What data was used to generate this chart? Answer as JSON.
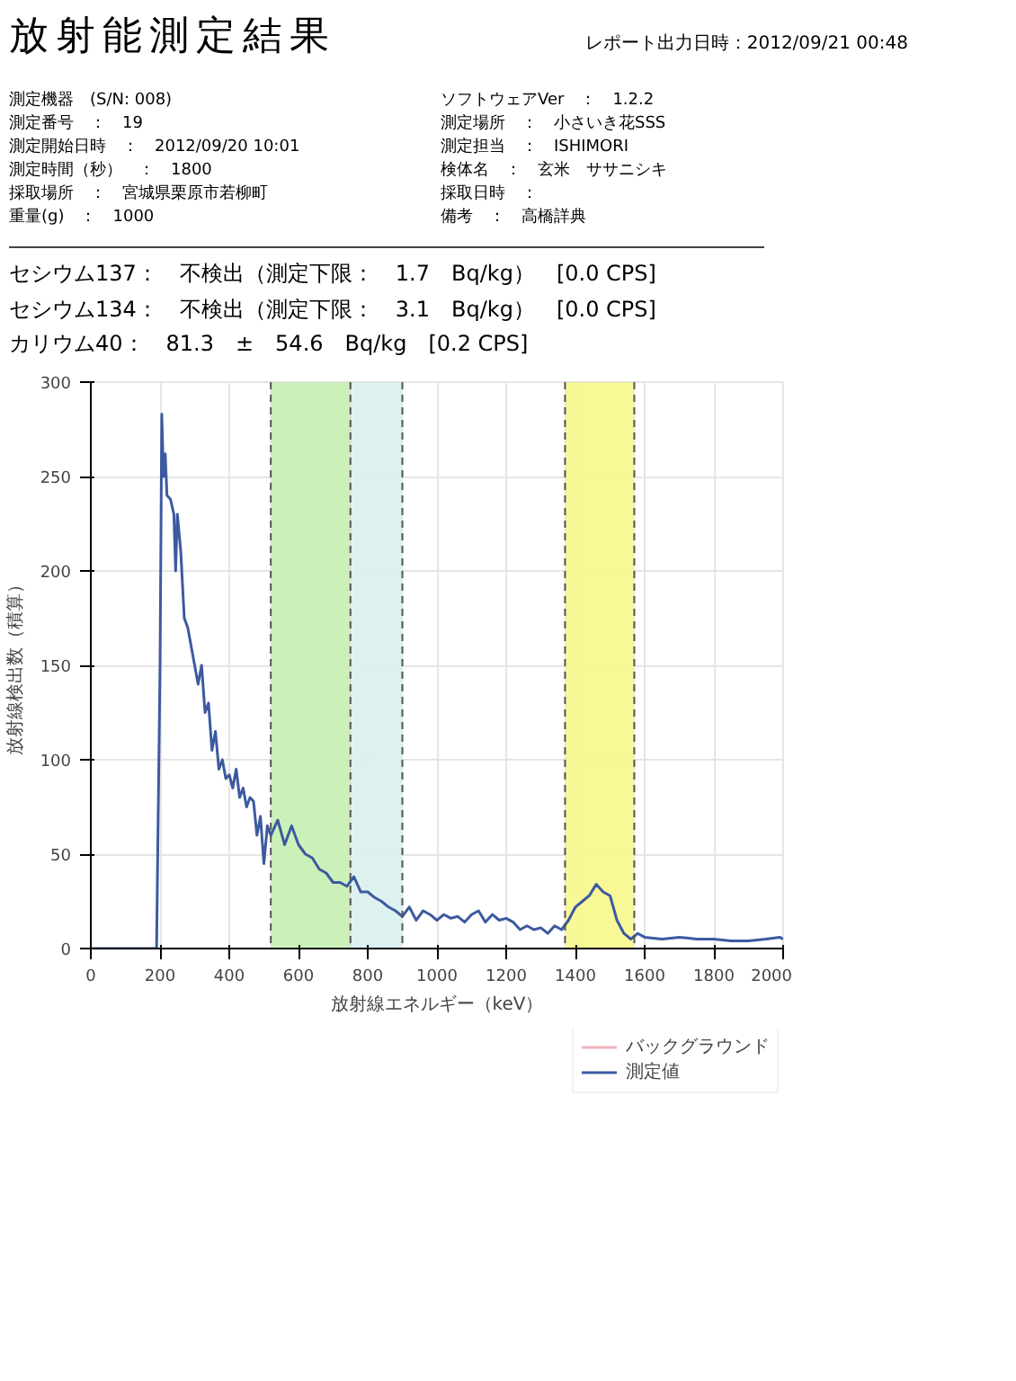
{
  "chart_data": {
    "type": "line",
    "title": "放射能測定結果",
    "subtitle": "レポート出力日時：2012/09/21 00:48",
    "annotations": [
      "測定機器　(S/N: 008)",
      "ソフトウェアVer　：　1.2.2",
      "測定番号　：　19",
      "測定場所　：　小さいき花SSS",
      "測定開始日時　：　2012/09/20 10:01",
      "測定担当　：　ISHIMORI",
      "測定時間（秒）　：　1800",
      "検体名　：　玄米　ササニシキ",
      "採取場所　：　宮城県栗原市若柳町",
      "採取日時　：",
      "重量(g)　：　1000",
      "備考　：　高橋詳典",
      "セシウム137：　不検出（測定下限：　1.7　Bq/kg）　[0.0 CPS]",
      "セシウム134：　不検出（測定下限：　3.1　Bq/kg）　[0.0 CPS]",
      "カリウム40：　81.3　±　54.6　Bq/kg　[0.2 CPS]"
    ],
    "xlabel": "放射線エネルギー（keV）",
    "ylabel": "放射線検出数（積算）",
    "xlim": [
      0,
      2000
    ],
    "xticks": [
      0,
      200,
      400,
      600,
      800,
      1000,
      1200,
      1400,
      1600,
      1800,
      2000
    ],
    "ylim": [
      0,
      300
    ],
    "yticks": [
      0,
      50,
      100,
      150,
      200,
      250,
      300
    ],
    "grid": true,
    "legend": "bottom right",
    "marker": "none",
    "line_style": "solid",
    "bands": [
      {
        "axis": "x",
        "from": 520,
        "to": 750,
        "color": "#c6efb0"
      },
      {
        "axis": "x",
        "from": 750,
        "to": 900,
        "color": "#d9f0ee"
      },
      {
        "axis": "x",
        "from": 1370,
        "to": 1570,
        "color": "#f7f78c"
      }
    ],
    "ref_lines": [
      {
        "axis": "x",
        "value": 520,
        "line_style": "dashed",
        "color": "#555555"
      },
      {
        "axis": "x",
        "value": 750,
        "line_style": "dashed",
        "color": "#555555"
      },
      {
        "axis": "x",
        "value": 900,
        "line_style": "dashed",
        "color": "#555555"
      },
      {
        "axis": "x",
        "value": 1370,
        "line_style": "dashed",
        "color": "#555555"
      },
      {
        "axis": "x",
        "value": 1570,
        "line_style": "dashed",
        "color": "#555555"
      }
    ],
    "x": [
      0,
      190,
      200,
      205,
      210,
      215,
      220,
      230,
      240,
      245,
      250,
      260,
      270,
      280,
      290,
      300,
      310,
      320,
      330,
      340,
      350,
      360,
      370,
      380,
      390,
      400,
      410,
      420,
      430,
      440,
      450,
      460,
      470,
      480,
      490,
      500,
      510,
      520,
      540,
      560,
      580,
      600,
      620,
      640,
      660,
      680,
      700,
      720,
      740,
      760,
      780,
      800,
      820,
      840,
      860,
      880,
      900,
      920,
      940,
      960,
      980,
      1000,
      1020,
      1040,
      1060,
      1080,
      1100,
      1120,
      1140,
      1160,
      1180,
      1200,
      1220,
      1240,
      1260,
      1280,
      1300,
      1320,
      1340,
      1360,
      1380,
      1400,
      1420,
      1440,
      1460,
      1480,
      1500,
      1520,
      1540,
      1560,
      1580,
      1600,
      1650,
      1700,
      1750,
      1800,
      1850,
      1900,
      1950,
      1990,
      2000
    ],
    "series": [
      {
        "name": "バックグラウンド",
        "color": "#f0b4bc",
        "values": [
          null,
          null,
          null,
          null,
          null,
          null,
          null,
          null,
          null,
          null,
          null,
          null,
          null,
          null,
          null,
          null,
          null,
          null,
          null,
          null,
          null,
          null,
          null,
          null,
          null,
          null,
          null,
          null,
          null,
          null,
          null,
          null,
          null,
          null,
          null,
          null,
          null,
          null,
          null,
          null,
          null,
          null,
          null,
          null,
          null,
          null,
          null,
          null,
          null,
          null,
          null,
          null,
          null,
          null,
          null,
          null,
          null,
          null,
          null,
          null,
          null,
          null,
          null,
          null,
          null,
          null,
          null,
          null,
          null,
          null,
          null,
          null,
          null,
          null,
          null,
          null,
          null,
          null,
          null,
          null,
          null,
          null,
          null,
          null,
          null,
          null,
          null,
          null,
          null,
          null,
          null,
          null,
          null,
          null,
          null,
          null,
          null,
          null,
          null,
          null,
          null
        ]
      },
      {
        "name": "測定値",
        "color": "#3c5aa0",
        "values": [
          0,
          0,
          150,
          283,
          250,
          262,
          240,
          238,
          230,
          200,
          230,
          210,
          175,
          170,
          160,
          150,
          140,
          150,
          125,
          130,
          105,
          115,
          95,
          100,
          90,
          92,
          85,
          95,
          80,
          85,
          75,
          80,
          78,
          60,
          70,
          45,
          65,
          60,
          68,
          55,
          65,
          55,
          50,
          48,
          42,
          40,
          35,
          35,
          33,
          38,
          30,
          30,
          27,
          25,
          22,
          20,
          17,
          22,
          15,
          20,
          18,
          15,
          18,
          16,
          17,
          14,
          18,
          20,
          14,
          18,
          15,
          16,
          14,
          10,
          12,
          10,
          11,
          8,
          12,
          10,
          15,
          22,
          25,
          28,
          34,
          30,
          28,
          15,
          8,
          5,
          8,
          6,
          5,
          6,
          5,
          5,
          4,
          4,
          5,
          6,
          5
        ]
      }
    ]
  }
}
